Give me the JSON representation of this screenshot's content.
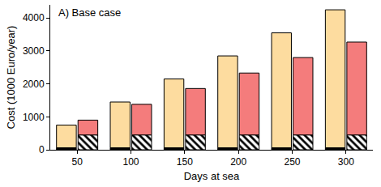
{
  "chart_data": {
    "type": "bar",
    "title": "A) Base case",
    "x_label": "Days at sea",
    "y_label": "Cost (1000 Euro/year)",
    "categories": [
      "50",
      "100",
      "150",
      "200",
      "250",
      "300"
    ],
    "stacked": true,
    "groups": [
      {
        "series": [
          {
            "color": "#000000",
            "values": [
              60,
              60,
              60,
              60,
              60,
              60
            ]
          },
          {
            "color": "#fddc9f",
            "values": [
              690,
              1390,
              2090,
              2790,
              3490,
              4190
            ]
          }
        ]
      },
      {
        "series": [
          {
            "color": "#000000",
            "marker": "hatch",
            "values": [
              450,
              450,
              450,
              450,
              450,
              450
            ]
          },
          {
            "color": "#f47c7c",
            "values": [
              450,
              930,
              1410,
              1880,
              2350,
              2820
            ]
          }
        ]
      }
    ],
    "ylim": [
      0,
      4400
    ],
    "yticks": [
      0,
      1000,
      2000,
      3000,
      4000
    ],
    "grid": false
  }
}
